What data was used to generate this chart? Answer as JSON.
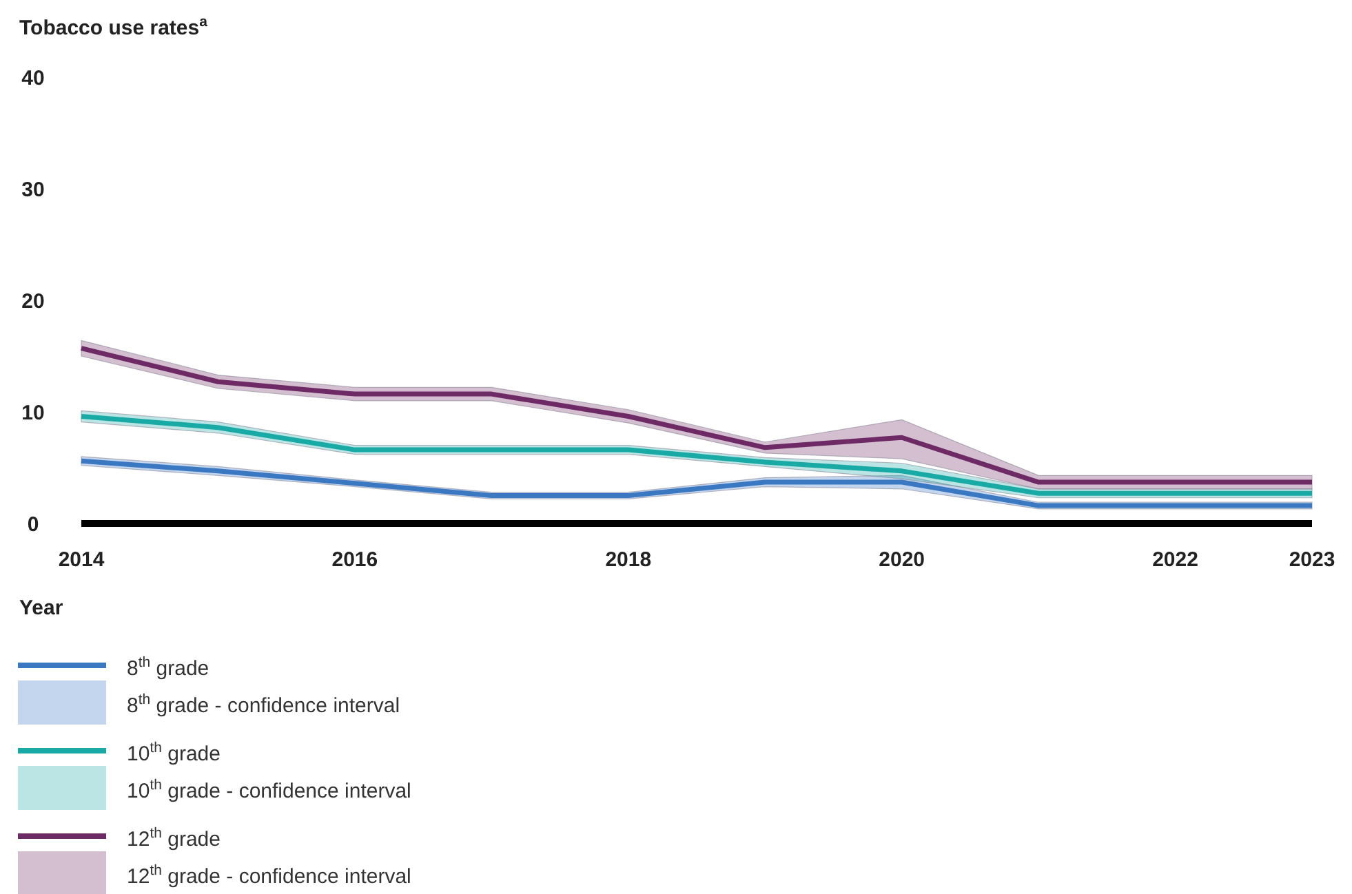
{
  "chart_data": {
    "type": "line",
    "title": "Tobacco use rates$^{a}$",
    "xlabel": "Year",
    "x": [
      2014,
      2015,
      2016,
      2017,
      2018,
      2019,
      2020,
      2021,
      2022,
      2023
    ],
    "xlim": [
      2014,
      2023
    ],
    "xticks": [
      2014,
      2016,
      2018,
      2020,
      2022,
      2023
    ],
    "ylim": [
      0,
      40
    ],
    "yticks": [
      0,
      10,
      20,
      30,
      40
    ],
    "grid": false,
    "legend": "bottom left",
    "annotations": [
      "8$^{th}$ grade - confidence interval",
      "10$^{th}$ grade - confidence interval",
      "12$^{th}$ grade - confidence interval"
    ],
    "series": [
      {
        "name": "8$^{th}$ grade",
        "color": "#3a78c2",
        "values": [
          5.6,
          4.7,
          3.6,
          2.5,
          2.5,
          3.7,
          3.7,
          1.6,
          1.6,
          1.6
        ],
        "lower": [
          5.2,
          4.3,
          3.3,
          2.2,
          2.2,
          3.3,
          3.1,
          1.3,
          1.3,
          1.3
        ],
        "upper": [
          6.0,
          5.1,
          3.9,
          2.8,
          2.8,
          4.1,
          4.3,
          1.9,
          1.9,
          1.9
        ]
      },
      {
        "name": "10$^{th}$ grade",
        "color": "#19aaa5",
        "values": [
          9.6,
          8.6,
          6.6,
          6.6,
          6.6,
          5.5,
          4.7,
          2.7,
          2.7,
          2.7
        ],
        "lower": [
          9.1,
          8.1,
          6.2,
          6.2,
          6.2,
          5.1,
          4.0,
          2.3,
          2.3,
          2.3
        ],
        "upper": [
          10.1,
          9.1,
          7.0,
          7.0,
          7.0,
          5.9,
          5.4,
          3.1,
          3.1,
          3.1
        ]
      },
      {
        "name": "12$^{th}$ grade",
        "color": "#6e2a64",
        "values": [
          15.7,
          12.7,
          11.6,
          11.6,
          9.6,
          6.8,
          7.7,
          3.7,
          3.7,
          3.7
        ],
        "lower": [
          15.0,
          12.1,
          11.0,
          11.0,
          9.0,
          6.3,
          5.8,
          3.1,
          3.1,
          3.1
        ],
        "upper": [
          16.4,
          13.3,
          12.2,
          12.2,
          10.2,
          7.3,
          9.3,
          4.3,
          4.3,
          4.3
        ]
      }
    ]
  }
}
